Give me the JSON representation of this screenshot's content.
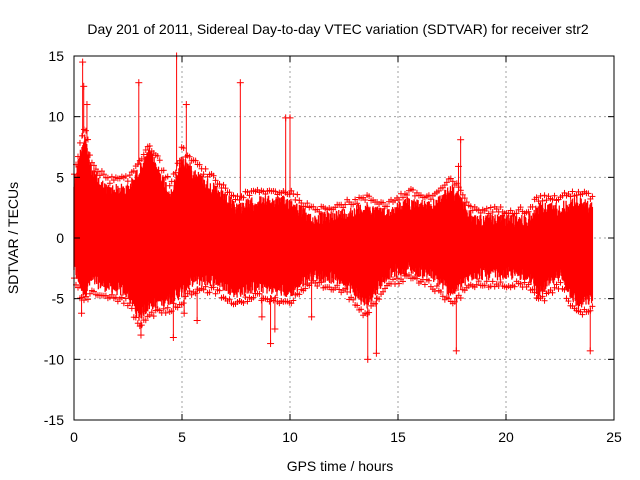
{
  "chart_data": {
    "type": "scatter",
    "title": "Day 201 of 2011, Sidereal Day-to-day VTEC variation (SDTVAR) for receiver str2",
    "xlabel": "GPS time / hours",
    "ylabel": "SDTVAR / TECUs",
    "xlim": [
      0,
      25
    ],
    "ylim": [
      -15,
      15
    ],
    "xticks": [
      0,
      5,
      10,
      15,
      20,
      25
    ],
    "yticks": [
      -15,
      -10,
      -5,
      0,
      5,
      10,
      15
    ],
    "xtick_labels": [
      "0",
      "5",
      "10",
      "15",
      "20",
      "25"
    ],
    "ytick_labels": [
      "-15",
      "-10",
      "-5",
      "0",
      "5",
      "10",
      "15"
    ],
    "grid": true,
    "marker": "+",
    "color": "#ff0000",
    "series": [
      {
        "name": "SDTVAR",
        "envelope": [
          {
            "x": 0.0,
            "lo": -3.0,
            "hi": 5.0
          },
          {
            "x": 0.3,
            "lo": -4.5,
            "hi": 7.5
          },
          {
            "x": 0.5,
            "lo": -5.0,
            "hi": 9.0
          },
          {
            "x": 0.8,
            "lo": -4.0,
            "hi": 6.0
          },
          {
            "x": 1.5,
            "lo": -4.5,
            "hi": 4.5
          },
          {
            "x": 2.5,
            "lo": -5.0,
            "hi": 4.5
          },
          {
            "x": 3.0,
            "lo": -7.0,
            "hi": 6.0
          },
          {
            "x": 3.5,
            "lo": -6.0,
            "hi": 7.5
          },
          {
            "x": 4.5,
            "lo": -5.5,
            "hi": 4.0
          },
          {
            "x": 5.0,
            "lo": -5.0,
            "hi": 7.0
          },
          {
            "x": 5.5,
            "lo": -4.0,
            "hi": 6.0
          },
          {
            "x": 6.5,
            "lo": -4.0,
            "hi": 4.5
          },
          {
            "x": 7.5,
            "lo": -5.0,
            "hi": 3.0
          },
          {
            "x": 8.5,
            "lo": -4.5,
            "hi": 3.5
          },
          {
            "x": 10.0,
            "lo": -5.0,
            "hi": 3.5
          },
          {
            "x": 11.0,
            "lo": -3.5,
            "hi": 2.0
          },
          {
            "x": 12.5,
            "lo": -4.0,
            "hi": 2.5
          },
          {
            "x": 13.5,
            "lo": -6.0,
            "hi": 3.0
          },
          {
            "x": 14.5,
            "lo": -3.5,
            "hi": 2.5
          },
          {
            "x": 15.5,
            "lo": -3.0,
            "hi": 3.5
          },
          {
            "x": 16.5,
            "lo": -3.5,
            "hi": 3.0
          },
          {
            "x": 17.5,
            "lo": -5.0,
            "hi": 4.5
          },
          {
            "x": 18.5,
            "lo": -3.5,
            "hi": 2.0
          },
          {
            "x": 20.0,
            "lo": -3.5,
            "hi": 2.0
          },
          {
            "x": 21.0,
            "lo": -3.5,
            "hi": 2.0
          },
          {
            "x": 21.5,
            "lo": -5.0,
            "hi": 3.0
          },
          {
            "x": 22.5,
            "lo": -3.5,
            "hi": 3.0
          },
          {
            "x": 23.3,
            "lo": -6.0,
            "hi": 3.5
          },
          {
            "x": 24.0,
            "lo": -5.5,
            "hi": 3.0
          }
        ],
        "outliers": [
          {
            "x": 0.4,
            "y": 14.5
          },
          {
            "x": 0.45,
            "y": 12.5
          },
          {
            "x": 0.6,
            "y": 11.0
          },
          {
            "x": 0.35,
            "y": -6.2
          },
          {
            "x": 3.0,
            "y": 12.8
          },
          {
            "x": 3.1,
            "y": -8.0
          },
          {
            "x": 4.6,
            "y": -8.2
          },
          {
            "x": 4.75,
            "y": 15.0
          },
          {
            "x": 5.2,
            "y": 11.0
          },
          {
            "x": 5.1,
            "y": -6.2
          },
          {
            "x": 5.7,
            "y": -6.8
          },
          {
            "x": 7.7,
            "y": 12.8
          },
          {
            "x": 9.8,
            "y": 9.9
          },
          {
            "x": 10.0,
            "y": 9.9
          },
          {
            "x": 9.1,
            "y": -8.7
          },
          {
            "x": 9.3,
            "y": -7.5
          },
          {
            "x": 13.6,
            "y": -10.0
          },
          {
            "x": 14.0,
            "y": -9.5
          },
          {
            "x": 17.9,
            "y": 8.1
          },
          {
            "x": 17.8,
            "y": 5.9
          },
          {
            "x": 17.7,
            "y": -9.3
          },
          {
            "x": 23.9,
            "y": -9.3
          },
          {
            "x": 8.7,
            "y": -6.5
          },
          {
            "x": 11.0,
            "y": -6.5
          }
        ]
      }
    ]
  }
}
